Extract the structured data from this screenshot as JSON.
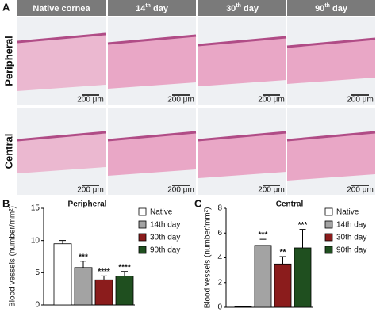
{
  "panel_a": {
    "label": "A",
    "columns": [
      {
        "text": "Native cornea"
      },
      {
        "number": "14",
        "sup": "th",
        "rest": " day"
      },
      {
        "number": "30",
        "sup": "th",
        "rest": " day"
      },
      {
        "number": "90",
        "sup": "th",
        "rest": " day"
      }
    ],
    "rows": [
      "Peripheral",
      "Central"
    ],
    "scale_bar": "200 μm"
  },
  "chart_data": [
    {
      "type": "bar",
      "panel": "B",
      "title": "Peripheral",
      "y_label": "Blood vessels (number/mm²)",
      "ylim": [
        0,
        15
      ],
      "yticks": [
        0,
        5,
        10,
        15
      ],
      "series": [
        {
          "name": "Native",
          "color": "#ffffff",
          "values": [
            9.5
          ],
          "errors": [
            0.5
          ]
        },
        {
          "name": "14th day",
          "color": "#a3a3a3",
          "values": [
            5.8
          ],
          "errors": [
            1.0
          ],
          "annotation": "***"
        },
        {
          "name": "30th day",
          "color": "#8b1c1c",
          "values": [
            3.9
          ],
          "errors": [
            0.6
          ],
          "annotation": "****"
        },
        {
          "name": "90th day",
          "color": "#1f4f1f",
          "values": [
            4.5
          ],
          "errors": [
            0.7
          ],
          "annotation": "****"
        }
      ]
    },
    {
      "type": "bar",
      "panel": "C",
      "title": "Central",
      "y_label": "Blood vessels (number/mm²)",
      "ylim": [
        0,
        8
      ],
      "yticks": [
        0,
        2,
        4,
        6,
        8
      ],
      "series": [
        {
          "name": "Native",
          "color": "#ffffff",
          "values": [
            0.05
          ],
          "errors": [
            0
          ]
        },
        {
          "name": "14th day",
          "color": "#a3a3a3",
          "values": [
            5.0
          ],
          "errors": [
            0.5
          ],
          "annotation": "***"
        },
        {
          "name": "30th day",
          "color": "#8b1c1c",
          "values": [
            3.5
          ],
          "errors": [
            0.6
          ],
          "annotation": "**"
        },
        {
          "name": "90th day",
          "color": "#1f4f1f",
          "values": [
            4.8
          ],
          "errors": [
            1.5
          ],
          "annotation": "***"
        }
      ]
    }
  ]
}
